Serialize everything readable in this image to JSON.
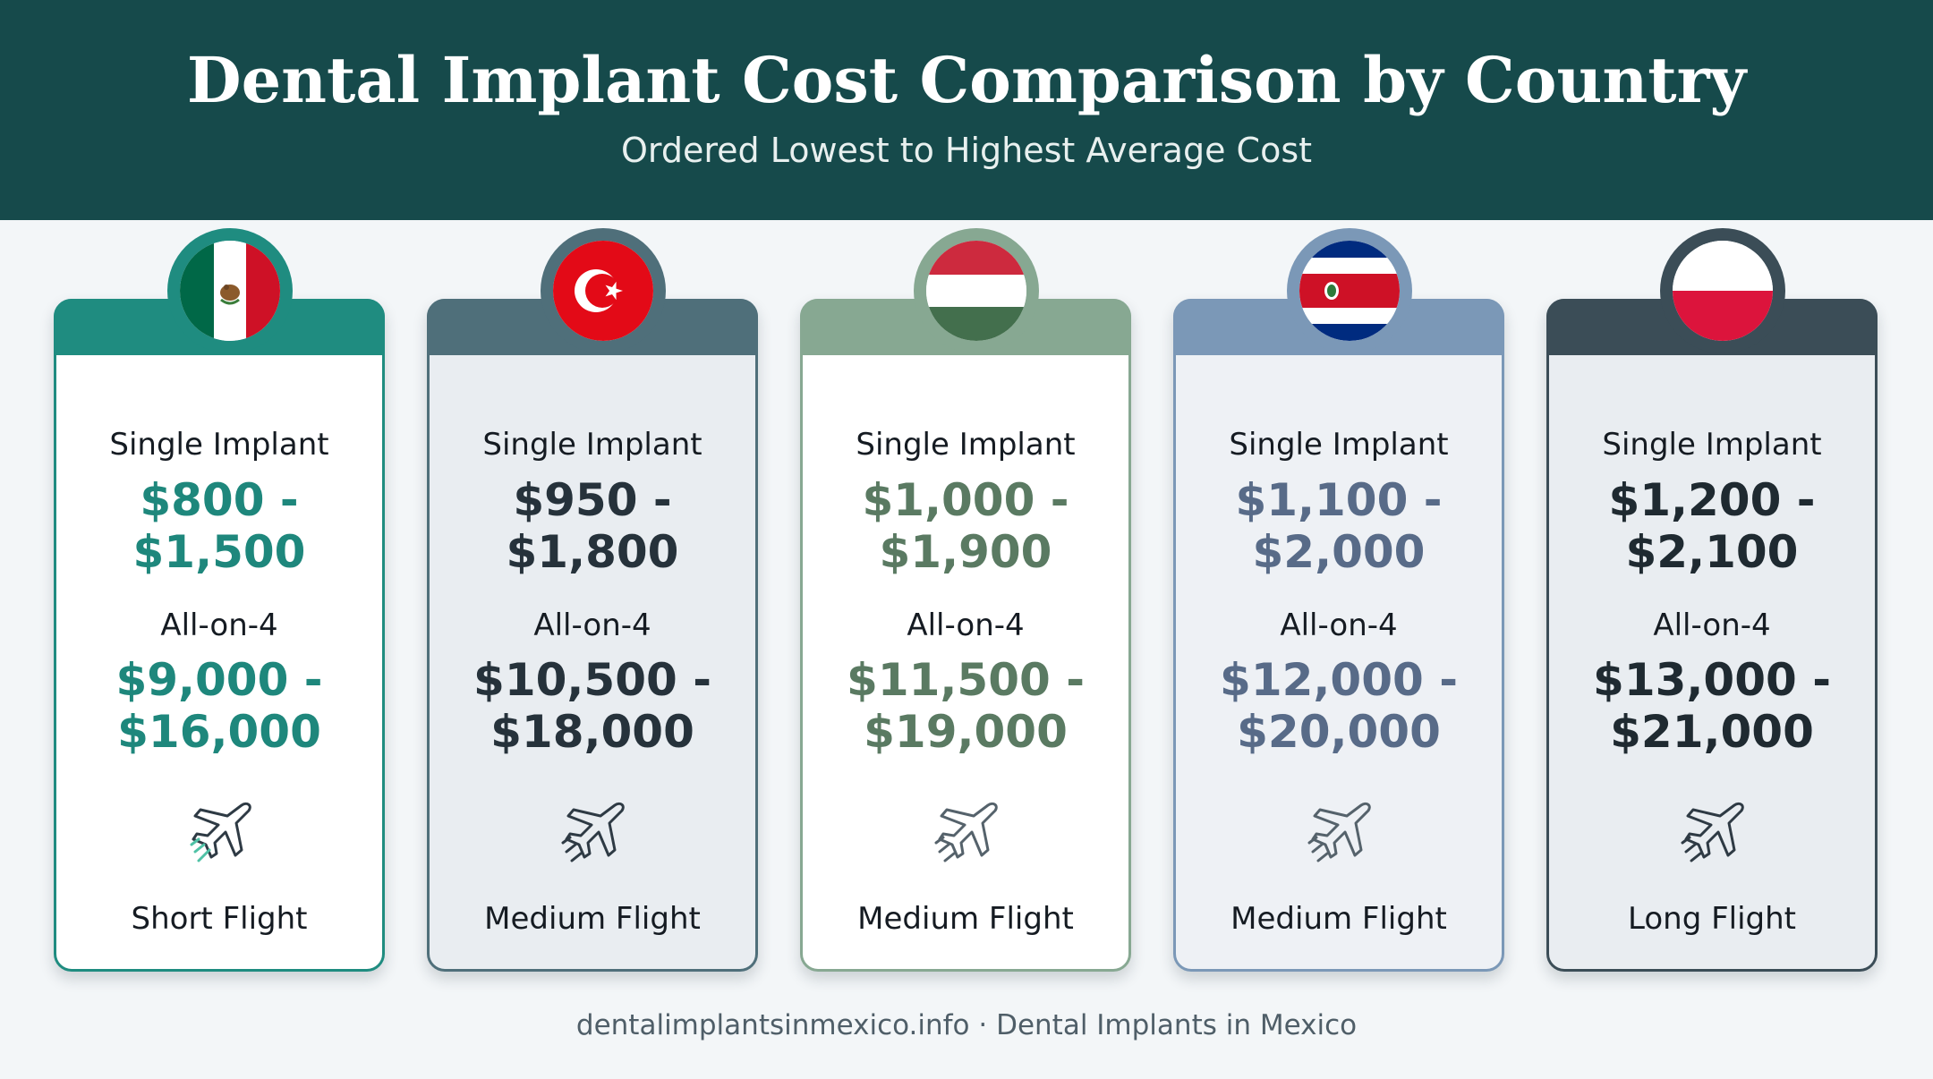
{
  "header": {
    "title": "Dental Implant Cost Comparison by Country",
    "subtitle": "Ordered Lowest to Highest Average Cost"
  },
  "cards": [
    {
      "country_flag": "mexico-flag-icon",
      "accent": "#1f8c80",
      "price_color": "#1e877c",
      "single_label": "Single Implant",
      "single_line1": "$800 -",
      "single_line2": "$1,500",
      "allon4_label": "All-on-4",
      "allon4_line1": "$9,000 -",
      "allon4_line2": "$16,000",
      "flight_icon": "plane-icon",
      "flight": "Short Flight"
    },
    {
      "country_flag": "turkey-flag-icon",
      "accent": "#4f6f7a",
      "price_color": "#26323b",
      "single_label": "Single Implant",
      "single_line1": "$950 -",
      "single_line2": "$1,800",
      "allon4_label": "All-on-4",
      "allon4_line1": "$10,500 -",
      "allon4_line2": "$18,000",
      "flight_icon": "plane-icon",
      "flight": "Medium Flight"
    },
    {
      "country_flag": "hungary-flag-icon",
      "accent": "#87a892",
      "price_color": "#5a7a62",
      "single_label": "Single Implant",
      "single_line1": "$1,000 -",
      "single_line2": "$1,900",
      "allon4_label": "All-on-4",
      "allon4_line1": "$11,500 -",
      "allon4_line2": "$19,000",
      "flight_icon": "plane-icon",
      "flight": "Medium Flight"
    },
    {
      "country_flag": "costa-rica-flag-icon",
      "accent": "#7b98b7",
      "price_color": "#586b88",
      "single_label": "Single Implant",
      "single_line1": "$1,100 -",
      "single_line2": "$2,000",
      "allon4_label": "All-on-4",
      "allon4_line1": "$12,000 -",
      "allon4_line2": "$20,000",
      "flight_icon": "plane-icon",
      "flight": "Medium Flight"
    },
    {
      "country_flag": "poland-flag-icon",
      "accent": "#3b4d57",
      "price_color": "#1f2a31",
      "single_label": "Single Implant",
      "single_line1": "$1,200 -",
      "single_line2": "$2,100",
      "allon4_label": "All-on-4",
      "allon4_line1": "$13,000 -",
      "allon4_line2": "$21,000",
      "flight_icon": "plane-icon",
      "flight": "Long Flight"
    }
  ],
  "footer": {
    "text": "dentalimplantsinmexico.info · Dental Implants in Mexico"
  }
}
